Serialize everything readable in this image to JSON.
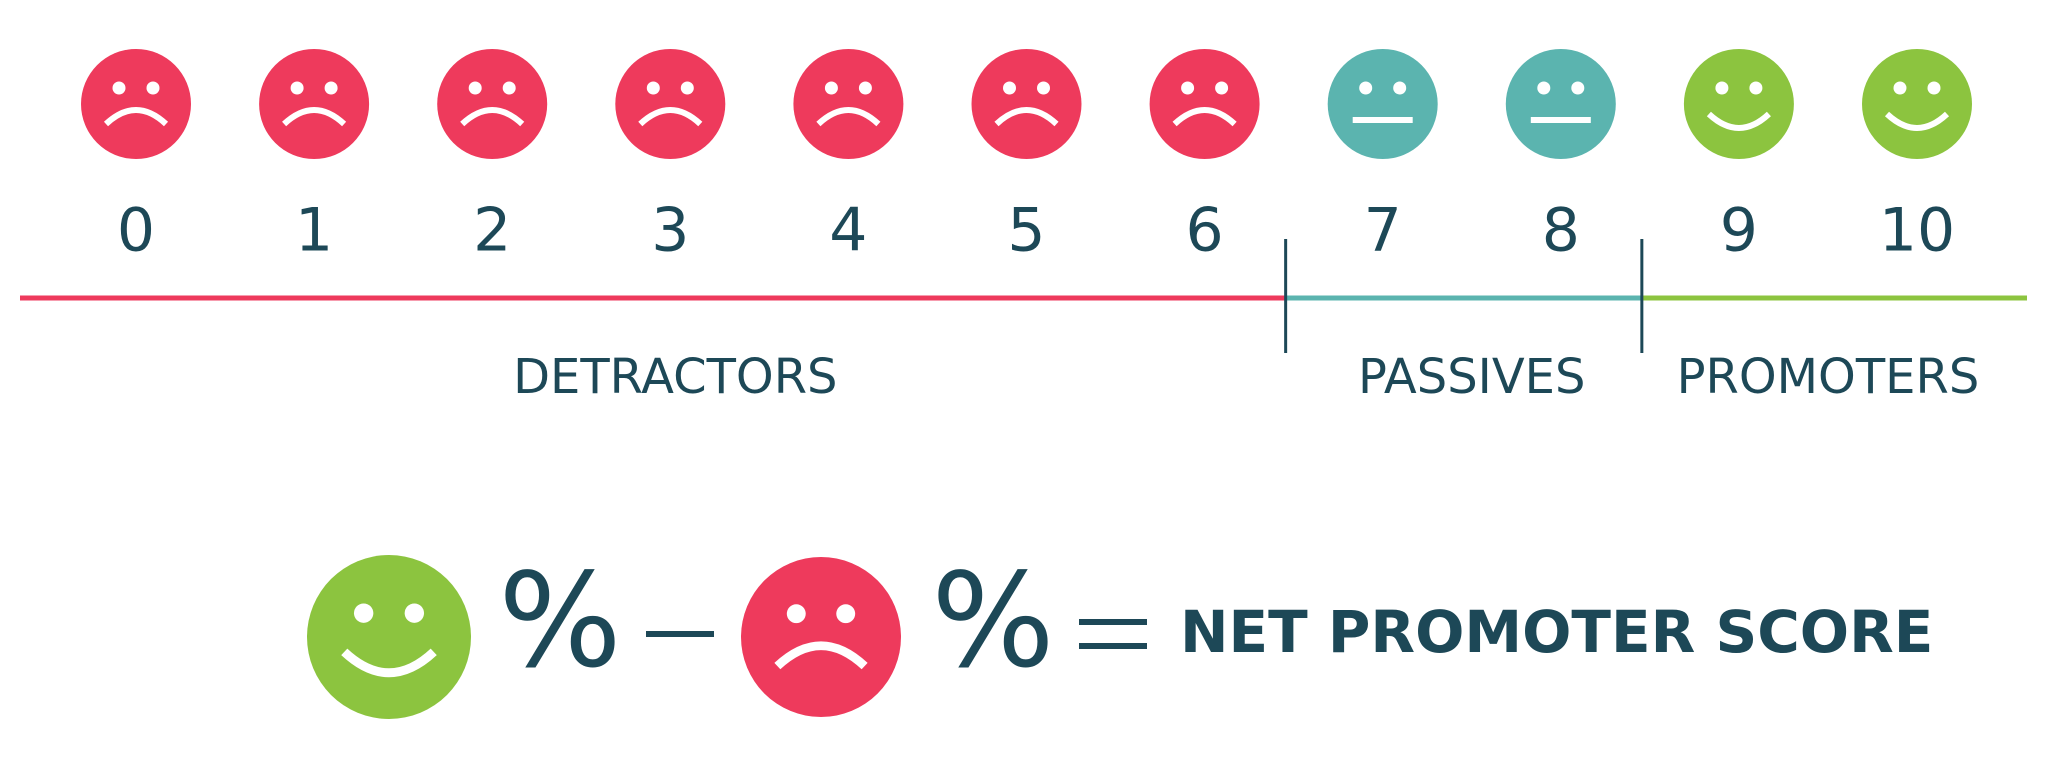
{
  "groups": [
    {
      "label": "DETRACTORS",
      "scores": [
        0,
        1,
        2,
        3,
        4,
        5,
        6
      ]
    },
    {
      "label": "PASSIVES",
      "scores": [
        7,
        8
      ]
    },
    {
      "label": "PROMOTERS",
      "scores": [
        9,
        10
      ]
    }
  ],
  "formula": {
    "promoters_percent": "%",
    "detractors_percent": "%",
    "result": "NET PROMOTER SCORE"
  }
}
